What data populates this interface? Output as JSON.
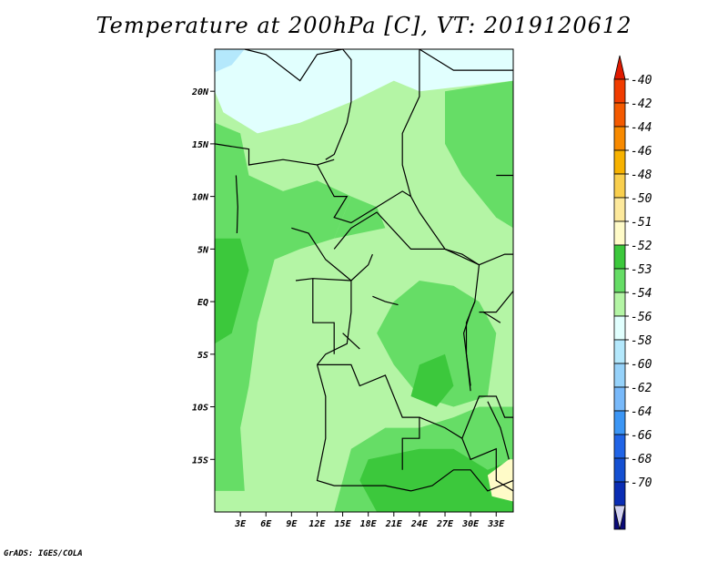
{
  "title": "Temperature at 200hPa [C], VT: 2019120612",
  "credit": "GrADS: IGES/COLA",
  "map": {
    "lon_range": [
      0,
      35
    ],
    "lat_range": [
      -20,
      24
    ],
    "lon_ticks": [
      {
        "value": 3,
        "label": "3E"
      },
      {
        "value": 6,
        "label": "6E"
      },
      {
        "value": 9,
        "label": "9E"
      },
      {
        "value": 12,
        "label": "12E"
      },
      {
        "value": 15,
        "label": "15E"
      },
      {
        "value": 18,
        "label": "18E"
      },
      {
        "value": 21,
        "label": "21E"
      },
      {
        "value": 24,
        "label": "24E"
      },
      {
        "value": 27,
        "label": "27E"
      },
      {
        "value": 30,
        "label": "30E"
      },
      {
        "value": 33,
        "label": "33E"
      }
    ],
    "lat_ticks": [
      {
        "value": 20,
        "label": "20N"
      },
      {
        "value": 15,
        "label": "15N"
      },
      {
        "value": 10,
        "label": "10N"
      },
      {
        "value": 5,
        "label": "5N"
      },
      {
        "value": 0,
        "label": "EQ"
      },
      {
        "value": -5,
        "label": "5S"
      },
      {
        "value": -10,
        "label": "10S"
      },
      {
        "value": -15,
        "label": "15S"
      }
    ]
  },
  "colorbar": {
    "labels": [
      "-40",
      "-42",
      "-44",
      "-46",
      "-48",
      "-50",
      "-51",
      "-52",
      "-53",
      "-54",
      "-56",
      "-58",
      "-60",
      "-62",
      "-64",
      "-66",
      "-68",
      "-70"
    ],
    "colors": [
      "#f03c00",
      "#f45a00",
      "#f88a00",
      "#f7b200",
      "#f9cf4e",
      "#fde99c",
      "#fffbc8",
      "#3cc83c",
      "#66dd66",
      "#b4f5a5",
      "#e1fffe",
      "#b4e8fc",
      "#96d2fa",
      "#78b9fa",
      "#3c96f5",
      "#2064e6",
      "#1450d2",
      "#0a2db4",
      "#0a0a78"
    ],
    "top_arrow_color": "#e01a00",
    "bottom_arrow_color": "#d2d2f0"
  },
  "palette": {
    "land_base": "#b4f5a5",
    "warm_53": "#66dd66",
    "warm_52": "#3cc83c",
    "cold_54": "#e1fffe",
    "cold_56": "#b4e8fc",
    "warm_51": "#fffbc8",
    "border": "#000000"
  }
}
